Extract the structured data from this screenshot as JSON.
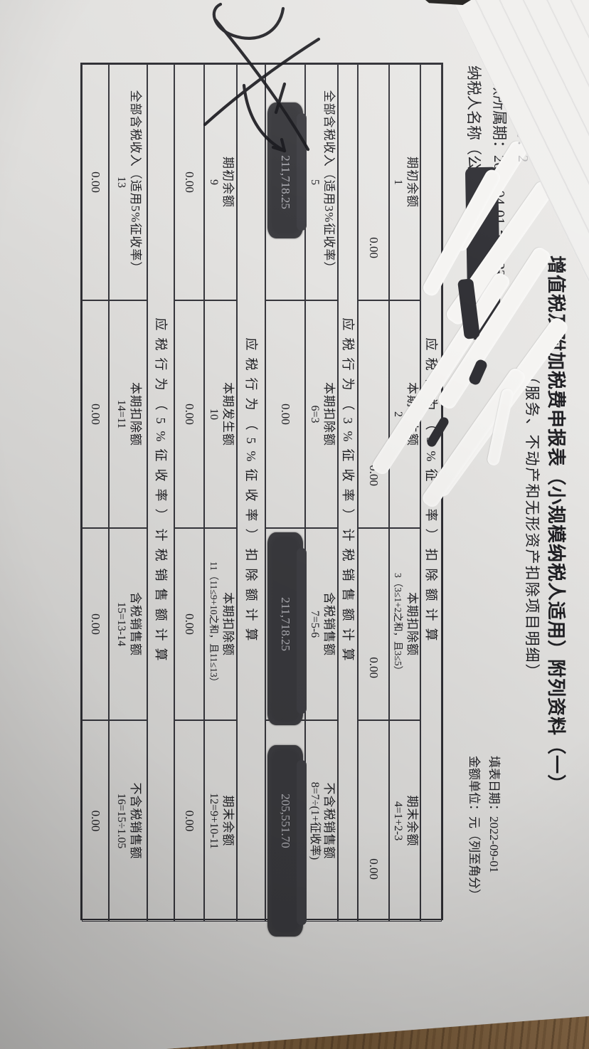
{
  "document": {
    "title": "增值税及附加税费申报表（小规模纳税人适用）附列资料（一）",
    "subtitle": "（服务、不动产和无形资产扣除项目明细）",
    "meta": {
      "tax_period_label": "税款所属期：",
      "tax_period_value": "2022-04-01 至 2022-0",
      "taxpayer_label": "纳税人名称（公章）",
      "fill_date_label": "填表日期：",
      "fill_date_value": "2022-09-01",
      "unit_label": "金额单位：",
      "unit_value": "元（列至角分）"
    },
    "table": {
      "sections": [
        {
          "title": "应税行为（3%征收率）扣除额计算",
          "headers": [
            {
              "label": "期初余额",
              "num": "1"
            },
            {
              "label": "本期发生额",
              "num": "2"
            },
            {
              "label": "本期扣除额",
              "num": "3（3≤1+2之和，且3≤5）"
            },
            {
              "label": "期末余额",
              "num": "4=1+2-3"
            }
          ],
          "values": [
            "0.00",
            "0.00",
            "0.00",
            "0.00"
          ],
          "redacted": [
            false,
            false,
            false,
            false
          ]
        },
        {
          "title": "应税行为（3%征收率）计税销售额计算",
          "headers": [
            {
              "label": "全部含税收入（适用3%征收率）",
              "num": "5"
            },
            {
              "label": "本期扣除额",
              "num": "6=3"
            },
            {
              "label": "含税销售额",
              "num": "7=5-6"
            },
            {
              "label": "不含税销售额",
              "num": "8=7÷(1+征收率)"
            }
          ],
          "values": [
            "211,718.25",
            "0.00",
            "211,718.25",
            "205,551.70"
          ],
          "redacted": [
            true,
            false,
            true,
            true
          ]
        },
        {
          "title": "应税行为（5%征收率）扣除额计算",
          "headers": [
            {
              "label": "期初余额",
              "num": "9"
            },
            {
              "label": "本期发生额",
              "num": "10"
            },
            {
              "label": "本期扣除额",
              "num": "11（11≤9+10之和，且11≤13）"
            },
            {
              "label": "期末余额",
              "num": "12=9+10-11"
            }
          ],
          "values": [
            "0.00",
            "0.00",
            "0.00",
            "0.00"
          ],
          "redacted": [
            false,
            false,
            false,
            false
          ]
        },
        {
          "title": "应税行为（5%征收率）计税销售额计算",
          "headers": [
            {
              "label": "全部含税收入（适用5%征收率）",
              "num": "13"
            },
            {
              "label": "本期扣除额",
              "num": "14=11"
            },
            {
              "label": "含税销售额",
              "num": "15=13-14"
            },
            {
              "label": "不含税销售额",
              "num": "16=15÷1.05"
            }
          ],
          "values": [
            "0.00",
            "0.00",
            "0.00",
            "0.00"
          ],
          "redacted": [
            false,
            false,
            false,
            false
          ]
        }
      ]
    },
    "annotations": {
      "backing_page_ghost_text": "税款所属期：2",
      "handwriting_note": "pen scribble with arrow pointing at redacted amount",
      "whiteout_note": "correction-fluid strokes over taxpayer name",
      "colors": {
        "paper": "#e3e2e0",
        "ink": "#202024",
        "marker_redaction": "#303035",
        "whiteout": "#f5f4f2",
        "desk_wood": "#8a6a45"
      }
    }
  }
}
